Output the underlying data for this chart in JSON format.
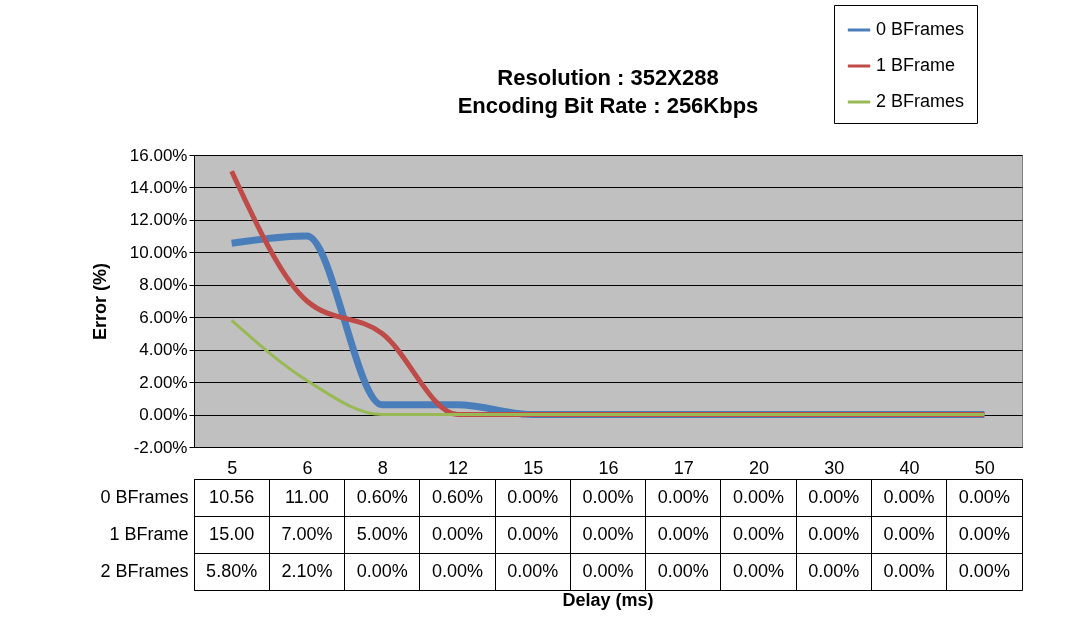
{
  "chart_data": {
    "type": "line",
    "title": "Resolution : 352X288",
    "subtitle": "Encoding Bit Rate : 256Kbps",
    "annotations": [
      "Delay (ms)"
    ],
    "ylabel": "Error (%)",
    "categories": [
      "5",
      "6",
      "8",
      "12",
      "15",
      "16",
      "17",
      "20",
      "30",
      "40",
      "50"
    ],
    "series": [
      {
        "name": "0 BFrames",
        "color": "#4a7ebb",
        "values": [
          10.56,
          11.0,
          0.6,
          0.6,
          0,
          0,
          0,
          0,
          0,
          0,
          0
        ],
        "value_labels": [
          "10.56",
          "11.00",
          "0.60%",
          "0.60%",
          "0.00%",
          "0.00%",
          "0.00%",
          "0.00%",
          "0.00%",
          "0.00%",
          "0.00%"
        ]
      },
      {
        "name": "1 BFrame",
        "color": "#be4b48",
        "values": [
          15.0,
          7.0,
          5.0,
          0,
          0,
          0,
          0,
          0,
          0,
          0,
          0
        ],
        "value_labels": [
          "15.00",
          "7.00%",
          "5.00%",
          "0.00%",
          "0.00%",
          "0.00%",
          "0.00%",
          "0.00%",
          "0.00%",
          "0.00%",
          "0.00%"
        ]
      },
      {
        "name": "2 BFrames",
        "color": "#98b954",
        "values": [
          5.8,
          2.1,
          0,
          0,
          0,
          0,
          0,
          0,
          0,
          0,
          0
        ],
        "value_labels": [
          "5.80%",
          "2.10%",
          "0.00%",
          "0.00%",
          "0.00%",
          "0.00%",
          "0.00%",
          "0.00%",
          "0.00%",
          "0.00%",
          "0.00%"
        ]
      }
    ],
    "ylim": [
      -2,
      16
    ],
    "yticks": [
      {
        "value": -2,
        "label": "-2.00%"
      },
      {
        "value": 0,
        "label": "0.00%"
      },
      {
        "value": 2,
        "label": "2.00%"
      },
      {
        "value": 4,
        "label": "4.00%"
      },
      {
        "value": 6,
        "label": "6.00%"
      },
      {
        "value": 8,
        "label": "8.00%"
      },
      {
        "value": 10,
        "label": "10.00%"
      },
      {
        "value": 12,
        "label": "12.00%"
      },
      {
        "value": 14,
        "label": "14.00%"
      },
      {
        "value": 16,
        "label": "16.00%"
      }
    ],
    "grid": "y",
    "legend": "top right",
    "marker": "none",
    "line_style": "solid"
  }
}
